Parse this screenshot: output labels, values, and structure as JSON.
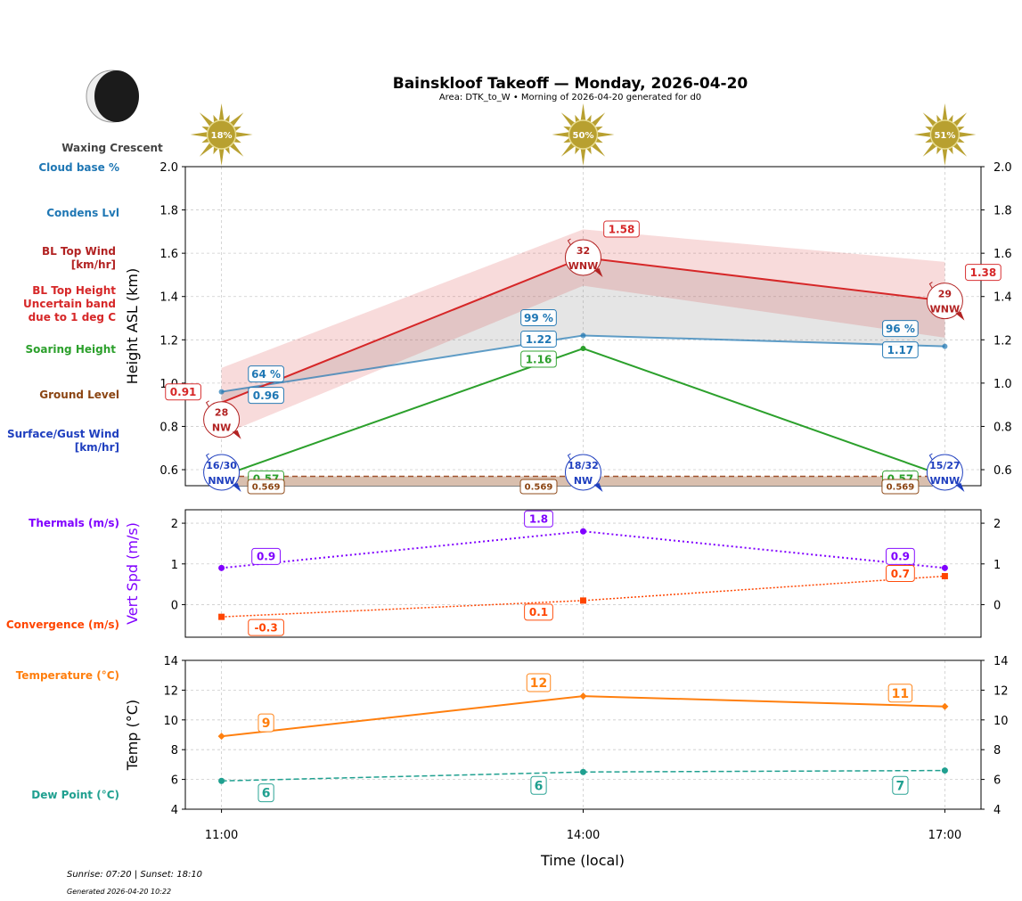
{
  "title": "Bainskloof Takeoff — Monday, 2026-04-20",
  "subtitle": "Area: DTK_to_W • Morning of 2026-04-20 generated for d0",
  "moon": {
    "phase_label": "Waxing Crescent",
    "icon": "moon-waxing-crescent-icon"
  },
  "footer": {
    "sun_times": "Sunrise: 07:20 | Sunset: 18:10",
    "generated": "Generated 2026-04-20 10:22"
  },
  "colors": {
    "bl_top": "#d62728",
    "bl_wind": "#b22222",
    "condens": "#1f77b4",
    "soaring": "#2ca02c",
    "ground": "#8b4513",
    "surface_wind": "#1f3fbf",
    "thermals": "#8000ff",
    "convergence": "#ff4500",
    "temperature": "#ff7f0e",
    "dewpoint": "#20a090",
    "sun": "#b8a030"
  },
  "side_labels": {
    "cloud_base": "Cloud base %",
    "condens": "Condens Lvl",
    "bl_wind": [
      "BL Top Wind",
      "[km/hr]"
    ],
    "bl_top": [
      "BL Top Height",
      "Uncertain band",
      "due to 1 deg C"
    ],
    "soaring": "Soaring Height",
    "ground": "Ground Level",
    "surface_wind": [
      "Surface/Gust Wind",
      "[km/hr]"
    ],
    "thermals": "Thermals (m/s)",
    "convergence": "Convergence (m/s)",
    "temperature": "Temperature (°C)",
    "dewpoint": "Dew Point (°C)"
  },
  "chart_data": [
    {
      "type": "line",
      "ylabel": "Height ASL (km)",
      "ylim": [
        0.526,
        2.0
      ],
      "yticks": [
        "0.6",
        "0.8",
        "1.0",
        "1.2",
        "1.4",
        "1.6",
        "1.8",
        "2.0"
      ],
      "x": [
        "11:00",
        "14:00",
        "17:00"
      ],
      "xlim_hours": [
        10.7,
        17.3
      ],
      "grid": true,
      "sun_percent": [
        "18%",
        "50%",
        "51%"
      ],
      "bl_top": {
        "values": [
          0.91,
          1.58,
          1.38
        ],
        "labels": [
          "0.91",
          "1.58",
          "1.38"
        ],
        "band_upper": [
          1.07,
          1.71,
          1.56
        ],
        "band_lower": [
          0.76,
          1.45,
          1.21
        ]
      },
      "bl_wind": {
        "speed": [
          "28",
          "32",
          "29"
        ],
        "dir": [
          "NW",
          "WNW",
          "WNW"
        ]
      },
      "condens": {
        "values": [
          0.96,
          1.22,
          1.17
        ],
        "labels": [
          "0.96",
          "1.22",
          "1.17"
        ],
        "cloud_pct": [
          "64 %",
          "99 %",
          "96 %"
        ]
      },
      "soaring": {
        "values": [
          0.57,
          1.16,
          0.57
        ],
        "labels": [
          "0.57",
          "1.16",
          "0.57"
        ]
      },
      "ground": {
        "value": 0.569,
        "labels": [
          "0.569",
          "0.569",
          "0.569"
        ]
      },
      "surface_wind": {
        "speed": [
          "16/30",
          "18/32",
          "15/27"
        ],
        "dir": [
          "NNW",
          "NW",
          "WNW"
        ]
      }
    },
    {
      "type": "line",
      "ylabel": "Vert Spd (m/s)",
      "ylim": [
        -0.8,
        2.33
      ],
      "yticks": [
        "0",
        "1",
        "2"
      ],
      "thermals": {
        "values": [
          0.9,
          1.8,
          0.9
        ],
        "labels": [
          "0.9",
          "1.8",
          "0.9"
        ]
      },
      "convergence": {
        "values": [
          -0.3,
          0.1,
          0.7
        ],
        "labels": [
          "-0.3",
          "0.1",
          "0.7"
        ]
      }
    },
    {
      "type": "line",
      "ylabel": "Temp (°C)",
      "xlabel": "Time (local)",
      "ylim": [
        4,
        14
      ],
      "yticks": [
        "4",
        "6",
        "8",
        "10",
        "12",
        "14"
      ],
      "temperature": {
        "values": [
          8.9,
          11.6,
          10.9
        ],
        "labels": [
          "9",
          "12",
          "11"
        ]
      },
      "dewpoint": {
        "values": [
          5.9,
          6.5,
          6.6
        ],
        "labels": [
          "6",
          "6",
          "7"
        ]
      }
    }
  ]
}
